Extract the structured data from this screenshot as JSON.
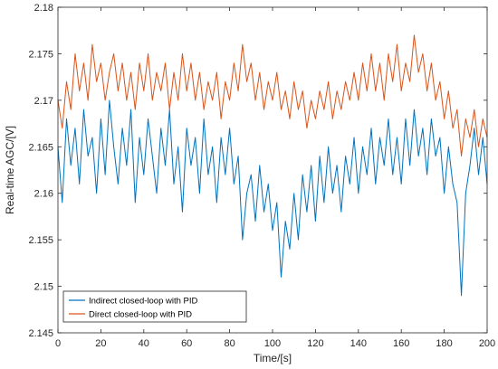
{
  "chart_data": {
    "type": "line",
    "title": "",
    "xlabel": "Time/[s]",
    "ylabel": "Real-time AGC/[V]",
    "xlim": [
      0,
      200
    ],
    "ylim": [
      2.145,
      2.18
    ],
    "xticks": [
      "0",
      "20",
      "40",
      "60",
      "80",
      "100",
      "120",
      "140",
      "160",
      "180",
      "200"
    ],
    "yticks": [
      "2.145",
      "2.15",
      "2.155",
      "2.16",
      "2.165",
      "2.17",
      "2.175",
      "2.18"
    ],
    "legend": "bottom-left",
    "grid": false,
    "series": [
      {
        "name": "Indirect closed-loop with PID",
        "color": "#0072BD",
        "x": [
          0,
          2,
          4,
          6,
          8,
          10,
          12,
          14,
          16,
          18,
          20,
          22,
          24,
          26,
          28,
          30,
          32,
          34,
          36,
          38,
          40,
          42,
          44,
          46,
          48,
          50,
          52,
          54,
          56,
          58,
          60,
          62,
          64,
          66,
          68,
          70,
          72,
          74,
          76,
          78,
          80,
          82,
          84,
          86,
          88,
          90,
          92,
          94,
          96,
          98,
          100,
          102,
          104,
          106,
          108,
          110,
          112,
          114,
          116,
          118,
          120,
          122,
          124,
          126,
          128,
          130,
          132,
          134,
          136,
          138,
          140,
          142,
          144,
          146,
          148,
          150,
          152,
          154,
          156,
          158,
          160,
          162,
          164,
          166,
          168,
          170,
          172,
          174,
          176,
          178,
          180,
          182,
          184,
          186,
          188,
          190,
          192,
          194,
          196,
          198,
          200
        ],
        "y": [
          2.165,
          2.159,
          2.168,
          2.163,
          2.167,
          2.161,
          2.169,
          2.164,
          2.166,
          2.16,
          2.168,
          2.162,
          2.17,
          2.165,
          2.161,
          2.167,
          2.163,
          2.169,
          2.159,
          2.166,
          2.162,
          2.168,
          2.164,
          2.16,
          2.167,
          2.163,
          2.169,
          2.161,
          2.165,
          2.158,
          2.167,
          2.163,
          2.166,
          2.16,
          2.168,
          2.162,
          2.165,
          2.159,
          2.166,
          2.162,
          2.167,
          2.161,
          2.164,
          2.155,
          2.16,
          2.162,
          2.157,
          2.163,
          2.158,
          2.161,
          2.156,
          2.159,
          2.151,
          2.157,
          2.154,
          2.16,
          2.155,
          2.162,
          2.158,
          2.163,
          2.157,
          2.164,
          2.159,
          2.165,
          2.16,
          2.163,
          2.158,
          2.164,
          2.161,
          2.166,
          2.16,
          2.165,
          2.162,
          2.167,
          2.161,
          2.166,
          2.163,
          2.168,
          2.162,
          2.166,
          2.161,
          2.168,
          2.163,
          2.169,
          2.164,
          2.167,
          2.162,
          2.168,
          2.164,
          2.166,
          2.16,
          2.165,
          2.161,
          2.159,
          2.149,
          2.16,
          2.163,
          2.167,
          2.162,
          2.166,
          2.161
        ]
      },
      {
        "name": "Direct closed-loop with PID",
        "color": "#D95319",
        "x": [
          0,
          2,
          4,
          6,
          8,
          10,
          12,
          14,
          16,
          18,
          20,
          22,
          24,
          26,
          28,
          30,
          32,
          34,
          36,
          38,
          40,
          42,
          44,
          46,
          48,
          50,
          52,
          54,
          56,
          58,
          60,
          62,
          64,
          66,
          68,
          70,
          72,
          74,
          76,
          78,
          80,
          82,
          84,
          86,
          88,
          90,
          92,
          94,
          96,
          98,
          100,
          102,
          104,
          106,
          108,
          110,
          112,
          114,
          116,
          118,
          120,
          122,
          124,
          126,
          128,
          130,
          132,
          134,
          136,
          138,
          140,
          142,
          144,
          146,
          148,
          150,
          152,
          154,
          156,
          158,
          160,
          162,
          164,
          166,
          168,
          170,
          172,
          174,
          176,
          178,
          180,
          182,
          184,
          186,
          188,
          190,
          192,
          194,
          196,
          198,
          200
        ],
        "y": [
          2.17,
          2.167,
          2.172,
          2.169,
          2.175,
          2.171,
          2.174,
          2.17,
          2.176,
          2.172,
          2.174,
          2.17,
          2.173,
          2.175,
          2.171,
          2.174,
          2.17,
          2.173,
          2.169,
          2.174,
          2.171,
          2.175,
          2.17,
          2.173,
          2.171,
          2.174,
          2.169,
          2.173,
          2.17,
          2.175,
          2.171,
          2.174,
          2.17,
          2.173,
          2.169,
          2.172,
          2.17,
          2.173,
          2.168,
          2.172,
          2.17,
          2.174,
          2.171,
          2.176,
          2.172,
          2.174,
          2.17,
          2.173,
          2.169,
          2.172,
          2.17,
          2.173,
          2.169,
          2.171,
          2.168,
          2.172,
          2.169,
          2.171,
          2.167,
          2.17,
          2.168,
          2.171,
          2.169,
          2.172,
          2.168,
          2.171,
          2.169,
          2.172,
          2.17,
          2.173,
          2.17,
          2.174,
          2.171,
          2.175,
          2.171,
          2.174,
          2.17,
          2.175,
          2.172,
          2.176,
          2.171,
          2.174,
          2.172,
          2.177,
          2.173,
          2.175,
          2.171,
          2.174,
          2.17,
          2.172,
          2.168,
          2.171,
          2.167,
          2.169,
          2.164,
          2.168,
          2.166,
          2.169,
          2.165,
          2.168,
          2.166
        ]
      }
    ]
  }
}
